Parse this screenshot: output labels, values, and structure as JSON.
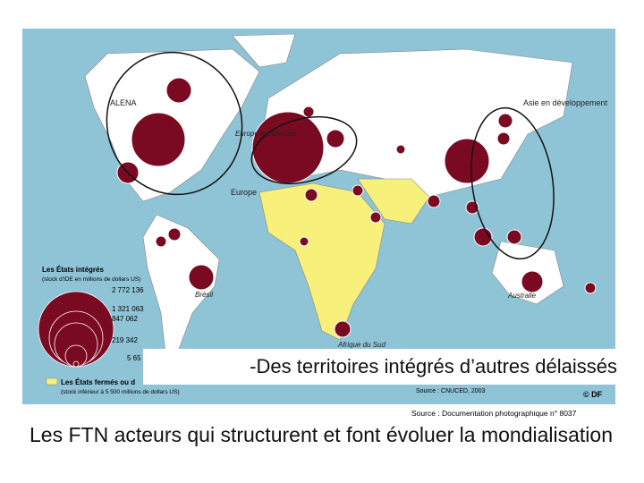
{
  "map": {
    "regions": [
      "ALENA",
      "Europe occidentale",
      "Europe",
      "Asie en développement",
      "Brésil",
      "Australie",
      "Afrique du Sud"
    ],
    "legend": {
      "title": "Les États intégrés",
      "subtitle": "(stock d'IDE en millions de dollars US)",
      "sizes": [
        "2 772 136",
        "1 321 063",
        "847 062",
        "219 342",
        "5 65"
      ],
      "closed_title": "Les États fermés ou d",
      "closed_subtitle": "(stock inférieur à 5 500 millions de dollars US)"
    },
    "source": "Source : CNUCED, 2003",
    "copyright": "© DF",
    "credit": "Source : Documentation photographique n° 8037"
  },
  "overlay": "-Des territoires intégrés d’autres délaissés",
  "caption": "Les FTN acteurs qui structurent  et font évoluer la mondialisation"
}
